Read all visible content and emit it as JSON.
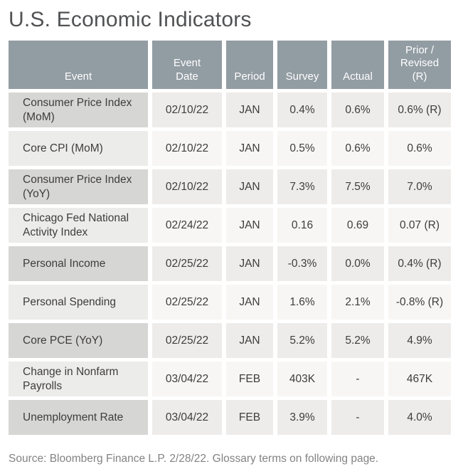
{
  "title": "U.S. Economic Indicators",
  "source_note": "Source: Bloomberg Finance L.P. 2/28/22. Glossary terms on following page.",
  "display": {
    "headers": {
      "event": "Event",
      "date": "Event\nDate",
      "period": "Period",
      "survey": "Survey",
      "actual": "Actual",
      "prior": "Prior /\nRevised\n(R)"
    }
  },
  "colors": {
    "header_bg": "#929CA3",
    "header_text": "#FFFFFF",
    "row_odd_event_bg": "#D6D6D5",
    "row_odd_data_bg": "#EDECEA",
    "row_even_event_bg": "#ECECEA",
    "row_even_data_bg": "#F7F6F4",
    "body_text": "#3E3D3B",
    "title_text": "#515254",
    "source_text": "#838383"
  },
  "chart_data": {
    "type": "table",
    "title": "U.S. Economic Indicators",
    "columns": [
      "Event",
      "Event Date",
      "Period",
      "Survey",
      "Actual",
      "Prior / Revised (R)"
    ],
    "rows": [
      [
        "Consumer Price Index (MoM)",
        "02/10/22",
        "JAN",
        "0.4%",
        "0.6%",
        "0.6% (R)"
      ],
      [
        "Core CPI (MoM)",
        "02/10/22",
        "JAN",
        "0.5%",
        "0.6%",
        "0.6%"
      ],
      [
        "Consumer Price Index (YoY)",
        "02/10/22",
        "JAN",
        "7.3%",
        "7.5%",
        "7.0%"
      ],
      [
        "Chicago Fed National Activity Index",
        "02/24/22",
        "JAN",
        "0.16",
        "0.69",
        "0.07 (R)"
      ],
      [
        "Personal Income",
        "02/25/22",
        "JAN",
        "-0.3%",
        "0.0%",
        "0.4% (R)"
      ],
      [
        "Personal Spending",
        "02/25/22",
        "JAN",
        "1.6%",
        "2.1%",
        "-0.8% (R)"
      ],
      [
        "Core PCE (YoY)",
        "02/25/22",
        "JAN",
        "5.2%",
        "5.2%",
        "4.9%"
      ],
      [
        "Change in Nonfarm Payrolls",
        "03/04/22",
        "FEB",
        "403K",
        "-",
        "467K"
      ],
      [
        "Unemployment Rate",
        "03/04/22",
        "FEB",
        "3.9%",
        "-",
        "4.0%"
      ]
    ]
  }
}
